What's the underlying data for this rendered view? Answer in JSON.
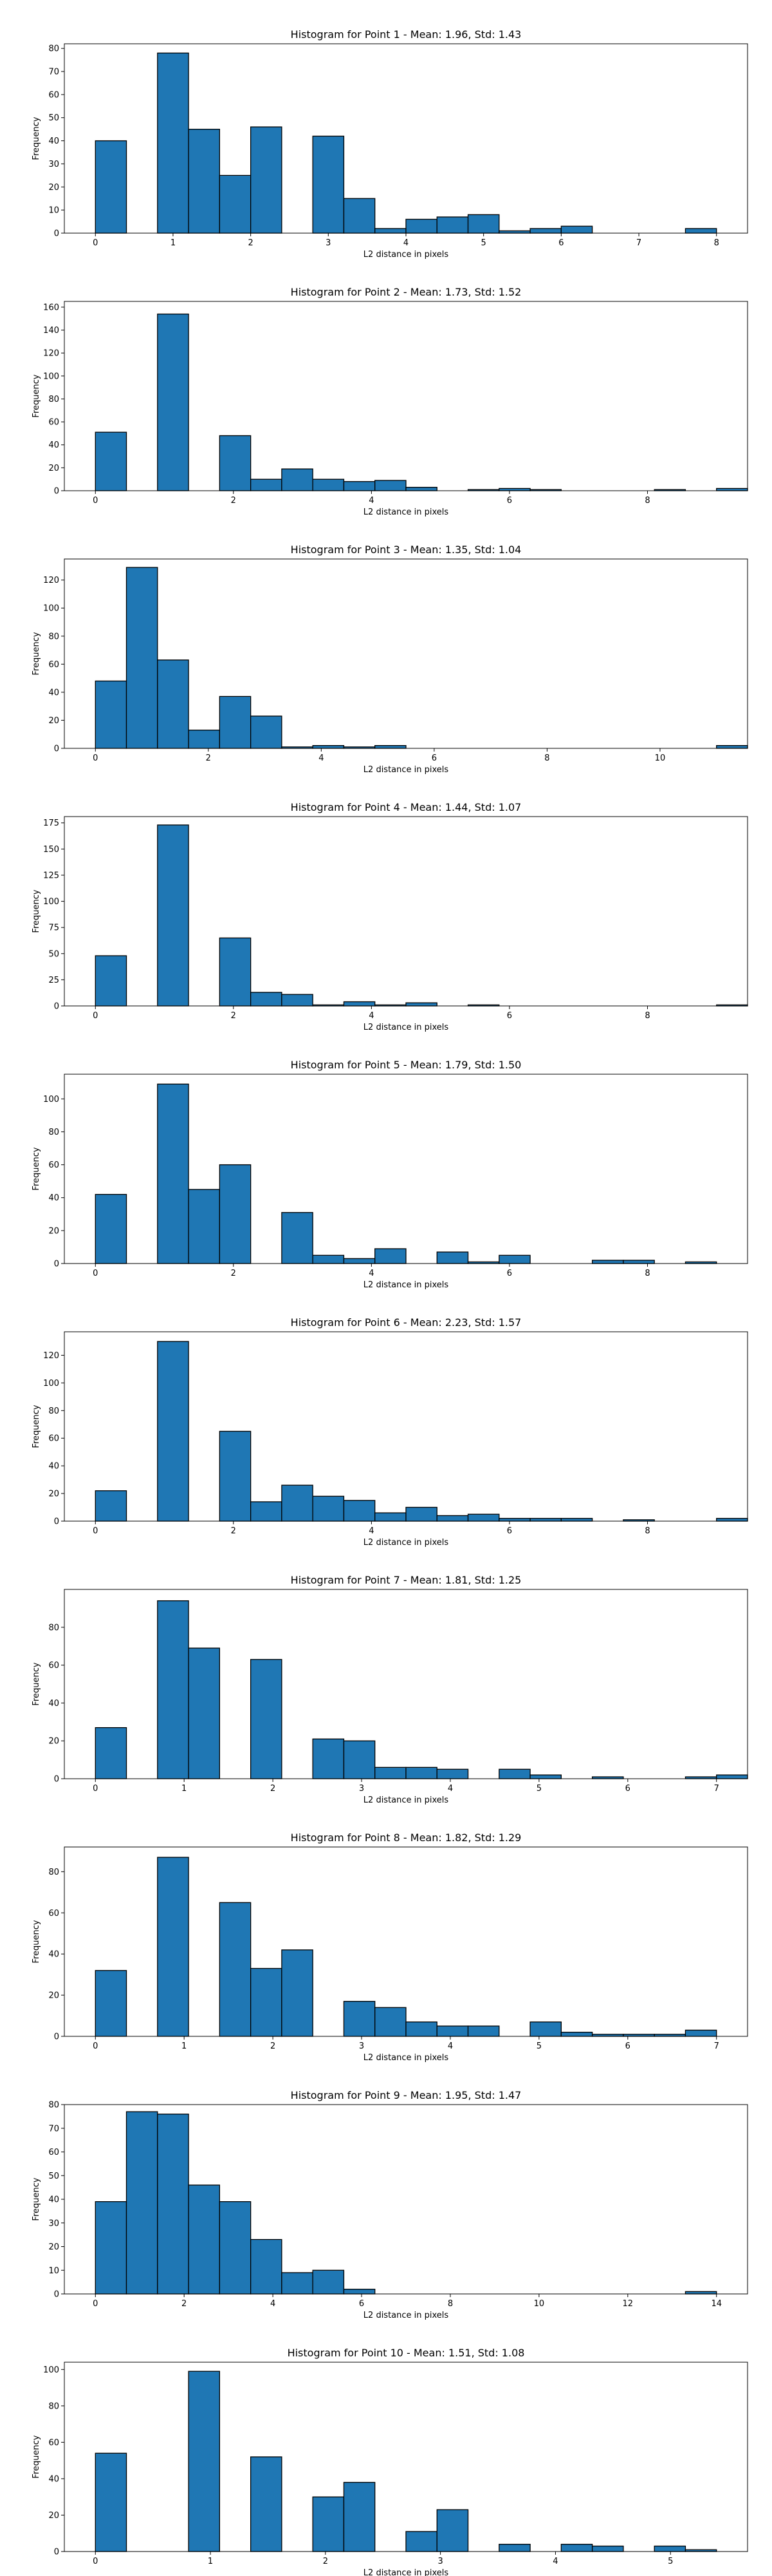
{
  "figure": {
    "background": "#ffffff"
  },
  "style": {
    "bar_color": "#1f77b4",
    "edge_color": "#000000"
  },
  "chart_data": [
    {
      "type": "bar",
      "title": "Histogram for Point 1 - Mean: 1.96, Std: 1.43",
      "xlabel": "L2 distance in pixels",
      "ylabel": "Frequency",
      "xlim": [
        -0.4,
        8.4
      ],
      "ylim": [
        0,
        82
      ],
      "xticks": [
        0,
        1,
        2,
        3,
        4,
        5,
        6,
        7,
        8
      ],
      "yticks": [
        0,
        10,
        20,
        30,
        40,
        50,
        60,
        70,
        80
      ],
      "bin_width": 0.4,
      "bin_starts": [
        0,
        0.8,
        1.2,
        1.6,
        2.0,
        2.8,
        3.2,
        3.6,
        4.0,
        4.4,
        4.8,
        5.2,
        5.6,
        6.0,
        7.6
      ],
      "values": [
        40,
        78,
        45,
        25,
        46,
        42,
        15,
        2,
        6,
        7,
        8,
        1,
        2,
        3,
        2
      ]
    },
    {
      "type": "bar",
      "title": "Histogram for Point 2 - Mean: 1.73, Std: 1.52",
      "xlabel": "L2 distance in pixels",
      "ylabel": "Frequency",
      "xlim": [
        -0.45,
        9.45
      ],
      "ylim": [
        0,
        165
      ],
      "xticks": [
        0,
        2,
        4,
        6,
        8
      ],
      "yticks": [
        0,
        20,
        40,
        60,
        80,
        100,
        120,
        140,
        160
      ],
      "bin_width": 0.45,
      "bin_starts": [
        0,
        0.9,
        1.8,
        2.25,
        2.7,
        3.15,
        3.6,
        4.05,
        4.5,
        5.4,
        5.85,
        6.3,
        6.75,
        7.2,
        8.1,
        9.0
      ],
      "values": [
        51,
        154,
        48,
        10,
        19,
        10,
        8,
        9,
        3,
        1,
        2,
        1,
        0,
        0,
        1,
        2
      ]
    },
    {
      "type": "bar",
      "title": "Histogram for Point 3 - Mean: 1.35, Std: 1.04",
      "xlabel": "L2 distance in pixels",
      "ylabel": "Frequency",
      "xlim": [
        -0.55,
        11.55
      ],
      "ylim": [
        0,
        135
      ],
      "xticks": [
        0,
        2,
        4,
        6,
        8,
        10
      ],
      "yticks": [
        0,
        20,
        40,
        60,
        80,
        100,
        120
      ],
      "bin_width": 0.55,
      "bin_starts": [
        0,
        0.55,
        1.1,
        1.65,
        2.2,
        2.75,
        3.3,
        3.85,
        4.4,
        4.95,
        5.5,
        11.0
      ],
      "values": [
        48,
        129,
        63,
        13,
        37,
        23,
        1,
        2,
        1,
        2,
        0,
        2
      ]
    },
    {
      "type": "bar",
      "title": "Histogram for Point 4 - Mean: 1.44, Std: 1.07",
      "xlabel": "L2 distance in pixels",
      "ylabel": "Frequency",
      "xlim": [
        -0.45,
        9.45
      ],
      "ylim": [
        0,
        181
      ],
      "xticks": [
        0,
        2,
        4,
        6,
        8
      ],
      "yticks": [
        0,
        25,
        50,
        75,
        100,
        125,
        150,
        175
      ],
      "bin_width": 0.45,
      "bin_starts": [
        0,
        0.9,
        1.8,
        2.25,
        2.7,
        3.15,
        3.6,
        4.05,
        4.5,
        4.95,
        5.4,
        5.85,
        9.0
      ],
      "values": [
        48,
        173,
        65,
        13,
        11,
        1,
        4,
        1,
        3,
        0,
        1,
        0,
        1
      ]
    },
    {
      "type": "bar",
      "title": "Histogram for Point 5 - Mean: 1.79, Std: 1.50",
      "xlabel": "L2 distance in pixels",
      "ylabel": "Frequency",
      "xlim": [
        -0.45,
        9.45
      ],
      "ylim": [
        0,
        115
      ],
      "xticks": [
        0,
        2,
        4,
        6,
        8
      ],
      "yticks": [
        0,
        20,
        40,
        60,
        80,
        100
      ],
      "bin_width": 0.45,
      "bin_starts": [
        0,
        0.9,
        1.35,
        1.8,
        2.7,
        3.15,
        3.6,
        4.05,
        4.95,
        5.4,
        5.85,
        7.2,
        7.65,
        8.55
      ],
      "values": [
        42,
        109,
        45,
        60,
        31,
        5,
        3,
        9,
        7,
        1,
        5,
        2,
        2,
        1
      ]
    },
    {
      "type": "bar",
      "title": "Histogram for Point 6 - Mean: 2.23, Std: 1.57",
      "xlabel": "L2 distance in pixels",
      "ylabel": "Frequency",
      "xlim": [
        -0.45,
        9.45
      ],
      "ylim": [
        0,
        137
      ],
      "xticks": [
        0,
        2,
        4,
        6,
        8
      ],
      "yticks": [
        0,
        20,
        40,
        60,
        80,
        100,
        120
      ],
      "bin_width": 0.45,
      "bin_starts": [
        0,
        0.9,
        1.8,
        2.25,
        2.7,
        3.15,
        3.6,
        4.05,
        4.5,
        4.95,
        5.4,
        5.85,
        6.3,
        6.75,
        7.65,
        9.0
      ],
      "values": [
        22,
        130,
        65,
        14,
        26,
        18,
        15,
        6,
        10,
        4,
        5,
        2,
        2,
        2,
        1,
        2
      ]
    },
    {
      "type": "bar",
      "title": "Histogram for Point 7 - Mean: 1.81, Std: 1.25",
      "xlabel": "L2 distance in pixels",
      "ylabel": "Frequency",
      "xlim": [
        -0.35,
        7.35
      ],
      "ylim": [
        0,
        100
      ],
      "xticks": [
        0,
        1,
        2,
        3,
        4,
        5,
        6,
        7
      ],
      "yticks": [
        0,
        20,
        40,
        60,
        80
      ],
      "bin_width": 0.35,
      "bin_starts": [
        0,
        0.7,
        1.05,
        1.75,
        2.45,
        2.8,
        3.15,
        3.5,
        3.85,
        4.55,
        4.9,
        5.6,
        6.65,
        7.0
      ],
      "values": [
        27,
        94,
        69,
        63,
        21,
        20,
        6,
        6,
        5,
        5,
        2,
        1,
        1,
        2
      ]
    },
    {
      "type": "bar",
      "title": "Histogram for Point 8 - Mean: 1.82, Std: 1.29",
      "xlabel": "L2 distance in pixels",
      "ylabel": "Frequency",
      "xlim": [
        -0.35,
        7.35
      ],
      "ylim": [
        0,
        92
      ],
      "xticks": [
        0,
        1,
        2,
        3,
        4,
        5,
        6,
        7
      ],
      "yticks": [
        0,
        20,
        40,
        60,
        80
      ],
      "bin_width": 0.35,
      "bin_starts": [
        0,
        0.7,
        1.4,
        1.75,
        2.1,
        2.8,
        3.15,
        3.5,
        3.85,
        4.2,
        4.9,
        5.25,
        5.6,
        5.95,
        6.3,
        6.65
      ],
      "values": [
        32,
        87,
        65,
        33,
        42,
        17,
        14,
        7,
        5,
        5,
        7,
        2,
        1,
        1,
        1,
        3
      ]
    },
    {
      "type": "bar",
      "title": "Histogram for Point 9 - Mean: 1.95, Std: 1.47",
      "xlabel": "L2 distance in pixels",
      "ylabel": "Frequency",
      "xlim": [
        -0.7,
        14.7
      ],
      "ylim": [
        0,
        80
      ],
      "xticks": [
        0,
        2,
        4,
        6,
        8,
        10,
        12,
        14
      ],
      "yticks": [
        0,
        10,
        20,
        30,
        40,
        50,
        60,
        70,
        80
      ],
      "bin_width": 0.7,
      "bin_starts": [
        0,
        0.7,
        1.4,
        2.1,
        2.8,
        3.5,
        4.2,
        4.9,
        5.6,
        13.3
      ],
      "values": [
        39,
        77,
        76,
        46,
        39,
        23,
        9,
        10,
        2,
        1
      ]
    },
    {
      "type": "bar",
      "title": "Histogram for Point 10 - Mean: 1.51, Std: 1.08",
      "xlabel": "L2 distance in pixels",
      "ylabel": "Frequency",
      "xlim": [
        -0.27,
        5.67
      ],
      "ylim": [
        0,
        104
      ],
      "xticks": [
        0,
        1,
        2,
        3,
        4,
        5
      ],
      "yticks": [
        0,
        20,
        40,
        60,
        80,
        100
      ],
      "bin_width": 0.27,
      "bin_starts": [
        0,
        0.81,
        1.35,
        1.89,
        2.16,
        2.7,
        2.97,
        3.51,
        4.05,
        4.32,
        4.86,
        5.13
      ],
      "values": [
        54,
        99,
        52,
        30,
        38,
        11,
        23,
        4,
        4,
        3,
        3,
        1
      ]
    }
  ]
}
